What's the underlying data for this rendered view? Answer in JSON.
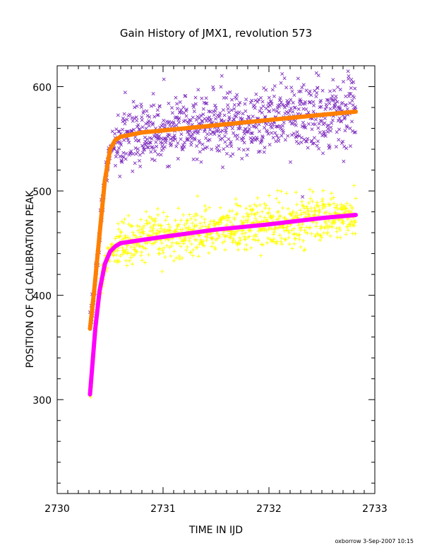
{
  "chart_data": {
    "type": "scatter",
    "title": "Gain History of JMX1, revolution 573",
    "xlabel": "TIME IN IJD",
    "ylabel": "POSITION OF Cd CALIBRATION PEAK",
    "xlim": [
      2730.0,
      2733.0
    ],
    "ylim": [
      210,
      620
    ],
    "x_ticks": [
      2730,
      2731,
      2732,
      2733
    ],
    "x_tick_labels": [
      "2730",
      "2731",
      "2732",
      "2733"
    ],
    "y_ticks": [
      300,
      400,
      500,
      600
    ],
    "y_tick_labels": [
      "300",
      "400",
      "500",
      "600"
    ],
    "grid": false,
    "legend": "none",
    "footer": "oxborrow 3-Sep-2007 10:15",
    "series": [
      {
        "marker": "x",
        "color": "#7f2fbf",
        "x_range": [
          2730.31,
          2732.82
        ],
        "fit": "upper-curve",
        "noise_sd": 16
      },
      {
        "marker": "+",
        "color": "#ffff00",
        "x_range": [
          2730.31,
          2732.82
        ],
        "fit": "lower-curve",
        "noise_sd": 11
      },
      {
        "type": "line",
        "color": "#ff7f00",
        "points": [
          [
            2730.31,
            368
          ],
          [
            2730.35,
            405
          ],
          [
            2730.4,
            458
          ],
          [
            2730.45,
            510
          ],
          [
            2730.5,
            540
          ],
          [
            2730.55,
            549
          ],
          [
            2730.6,
            552
          ],
          [
            2730.8,
            556
          ],
          [
            2731.0,
            558
          ],
          [
            2731.5,
            563
          ],
          [
            2732.0,
            568
          ],
          [
            2732.5,
            573
          ],
          [
            2732.82,
            576
          ]
        ]
      },
      {
        "type": "line",
        "color": "#ff00ff",
        "points": [
          [
            2730.31,
            305
          ],
          [
            2730.33,
            330
          ],
          [
            2730.36,
            368
          ],
          [
            2730.4,
            404
          ],
          [
            2730.45,
            430
          ],
          [
            2730.5,
            442
          ],
          [
            2730.55,
            447
          ],
          [
            2730.6,
            450
          ],
          [
            2730.8,
            453
          ],
          [
            2731.0,
            456
          ],
          [
            2731.5,
            463
          ],
          [
            2732.0,
            468
          ],
          [
            2732.5,
            474
          ],
          [
            2732.82,
            477
          ]
        ]
      }
    ]
  }
}
